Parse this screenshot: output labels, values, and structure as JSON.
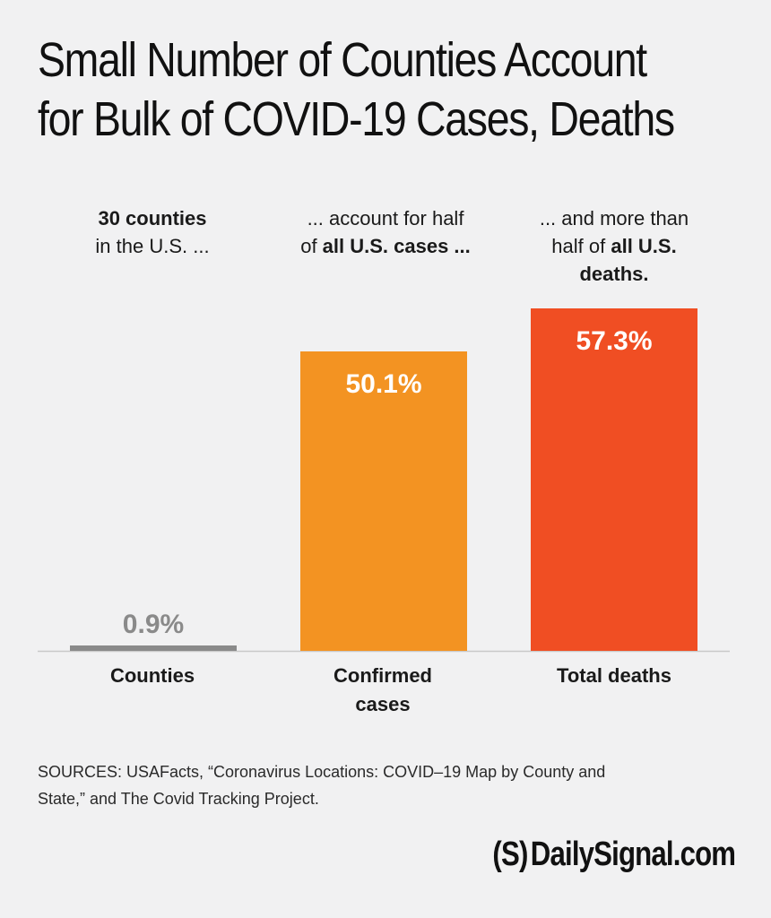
{
  "title": {
    "line1": "Small Number of Counties Account",
    "line2": "for Bulk of COVID-19 Cases, Deaths"
  },
  "annotations": {
    "counties": {
      "bold1": "30 counties",
      "text1": "in the U.S. ..."
    },
    "cases": {
      "text1": "... account for half",
      "text2a": "of ",
      "bold2": "all U.S. cases ..."
    },
    "deaths": {
      "text1": "... and more than",
      "text2a": "half of ",
      "bold2": "all U.S.",
      "bold3": "deaths."
    }
  },
  "chart_data": {
    "type": "bar",
    "categories": [
      "Counties",
      "Confirmed cases",
      "Total deaths"
    ],
    "values": [
      0.9,
      50.1,
      57.3
    ],
    "value_labels": [
      "0.9%",
      "50.1%",
      "57.3%"
    ],
    "colors": [
      "#8a8a8a",
      "#f39322",
      "#f04e23"
    ],
    "label_colors": [
      "#8a8a8a",
      "#ffffff",
      "#ffffff"
    ],
    "ylim": [
      0,
      57.3
    ]
  },
  "category_labels": {
    "counties": "Counties",
    "cases_line1": "Confirmed",
    "cases_line2": "cases",
    "deaths": "Total deaths"
  },
  "sources": {
    "line1": "SOURCES: USAFacts, “Coronavirus Locations: COVID–19 Map by County and",
    "line2": "State,” and The Covid Tracking Project."
  },
  "logo": {
    "mark": "(S)",
    "text": "DailySignal.com"
  }
}
